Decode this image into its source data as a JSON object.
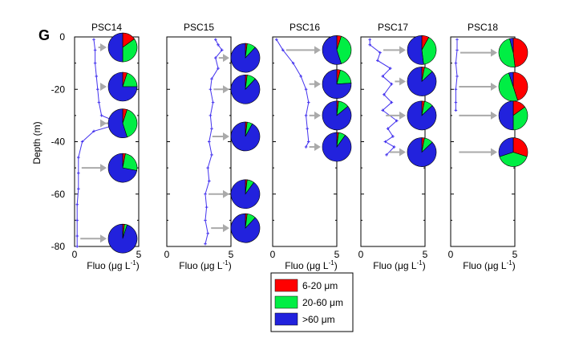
{
  "panel_letter": "G",
  "y_axis_label": "Depth (m)",
  "x_axis_label_main": "Fluo (μg L",
  "x_axis_label_exp": "-1",
  "x_axis_label_close": ")",
  "legend": {
    "items": [
      {
        "label": "6-20 μm",
        "color": "#ff0000"
      },
      {
        "label": "20-60 μm",
        "color": "#00ee44"
      },
      {
        "label": ">60 μm",
        "color": "#2222dd"
      }
    ]
  },
  "chart_data": {
    "type": "line",
    "x_axis": {
      "label": "Fluo (μg L-1)",
      "range": [
        0,
        5
      ],
      "ticks": [
        "0",
        "5"
      ]
    },
    "y_axis": {
      "label": "Depth (m)",
      "range": [
        -80,
        0
      ],
      "ticks": [
        "0",
        "-20",
        "-40",
        "-60",
        "-80"
      ]
    },
    "pie_classes": [
      "6-20 μm",
      "20-60 μm",
      ">60 μm"
    ],
    "stations": [
      {
        "name": "PSC14",
        "profile": [
          [
            1.5,
            -1
          ],
          [
            1.6,
            -5
          ],
          [
            1.6,
            -10
          ],
          [
            1.7,
            -15
          ],
          [
            1.8,
            -20
          ],
          [
            1.9,
            -25
          ],
          [
            2.1,
            -30
          ],
          [
            3.6,
            -33
          ],
          [
            1.5,
            -36
          ],
          [
            0.6,
            -40
          ],
          [
            0.3,
            -46
          ],
          [
            0.3,
            -52
          ],
          [
            0.3,
            -58
          ],
          [
            0.2,
            -64
          ],
          [
            0.2,
            -70
          ],
          [
            0.2,
            -76
          ],
          [
            0.2,
            -80
          ]
        ],
        "pies": [
          {
            "depth": -4,
            "fractions": [
              15,
              35,
              50
            ]
          },
          {
            "depth": -19,
            "fractions": [
              5,
              20,
              75
            ]
          },
          {
            "depth": -33,
            "fractions": [
              5,
              40,
              55
            ]
          },
          {
            "depth": -50,
            "fractions": [
              3,
              25,
              72
            ]
          },
          {
            "depth": -77,
            "fractions": [
              2,
              3,
              95
            ]
          }
        ]
      },
      {
        "name": "PSC15",
        "profile": [
          [
            3.8,
            -1
          ],
          [
            4.0,
            -3
          ],
          [
            4.3,
            -5
          ],
          [
            3.8,
            -8
          ],
          [
            4.0,
            -12
          ],
          [
            3.5,
            -16
          ],
          [
            3.4,
            -20
          ],
          [
            3.6,
            -25
          ],
          [
            3.4,
            -30
          ],
          [
            3.5,
            -35
          ],
          [
            3.3,
            -40
          ],
          [
            3.5,
            -45
          ],
          [
            3.2,
            -50
          ],
          [
            3.3,
            -55
          ],
          [
            3.0,
            -60
          ],
          [
            3.1,
            -65
          ],
          [
            3.0,
            -70
          ],
          [
            3.2,
            -75
          ],
          [
            3.0,
            -79
          ]
        ],
        "pies": [
          {
            "depth": -8,
            "fractions": [
              2,
              10,
              88
            ]
          },
          {
            "depth": -20,
            "fractions": [
              2,
              10,
              88
            ]
          },
          {
            "depth": -38,
            "fractions": [
              2,
              6,
              92
            ]
          },
          {
            "depth": -60,
            "fractions": [
              2,
              8,
              90
            ]
          },
          {
            "depth": -73,
            "fractions": [
              2,
              10,
              88
            ]
          }
        ]
      },
      {
        "name": "PSC16",
        "profile": [
          [
            0.3,
            -1
          ],
          [
            0.8,
            -5
          ],
          [
            1.6,
            -10
          ],
          [
            2.2,
            -15
          ],
          [
            2.6,
            -20
          ],
          [
            2.8,
            -25
          ],
          [
            2.6,
            -30
          ],
          [
            2.7,
            -35
          ],
          [
            2.8,
            -40
          ],
          [
            2.6,
            -42
          ]
        ],
        "pies": [
          {
            "depth": -5,
            "fractions": [
              5,
              40,
              55
            ]
          },
          {
            "depth": -18,
            "fractions": [
              4,
              20,
              76
            ]
          },
          {
            "depth": -30,
            "fractions": [
              2,
              12,
              86
            ]
          },
          {
            "depth": -42,
            "fractions": [
              2,
              8,
              90
            ]
          }
        ]
      },
      {
        "name": "PSC17",
        "profile": [
          [
            0.7,
            -1
          ],
          [
            0.7,
            -3
          ],
          [
            1.5,
            -6
          ],
          [
            1.3,
            -9
          ],
          [
            2.3,
            -12
          ],
          [
            1.7,
            -15
          ],
          [
            2.4,
            -18
          ],
          [
            1.8,
            -22
          ],
          [
            2.4,
            -25
          ],
          [
            1.7,
            -28
          ],
          [
            2.8,
            -32
          ],
          [
            2.1,
            -35
          ],
          [
            2.5,
            -38
          ],
          [
            1.9,
            -40
          ],
          [
            2.6,
            -42
          ],
          [
            2.0,
            -45
          ]
        ],
        "pies": [
          {
            "depth": -5,
            "fractions": [
              8,
              40,
              52
            ]
          },
          {
            "depth": -17,
            "fractions": [
              3,
              10,
              87
            ]
          },
          {
            "depth": -30,
            "fractions": [
              3,
              10,
              87
            ]
          },
          {
            "depth": -44,
            "fractions": [
              3,
              10,
              87
            ]
          }
        ]
      },
      {
        "name": "PSC18",
        "profile": [
          [
            0.5,
            -1
          ],
          [
            0.5,
            -5
          ],
          [
            0.4,
            -10
          ],
          [
            0.5,
            -15
          ],
          [
            0.4,
            -20
          ],
          [
            0.4,
            -25
          ],
          [
            0.4,
            -28
          ]
        ],
        "pies": [
          {
            "depth": -6,
            "fractions": [
              48,
              48,
              4
            ]
          },
          {
            "depth": -19,
            "fractions": [
              45,
              50,
              5
            ]
          },
          {
            "depth": -30,
            "fractions": [
              15,
              35,
              50
            ]
          },
          {
            "depth": -44,
            "fractions": [
              30,
              40,
              30
            ]
          }
        ]
      }
    ]
  }
}
